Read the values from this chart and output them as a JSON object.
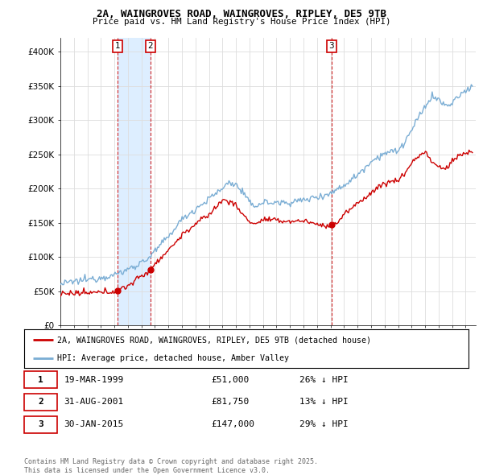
{
  "title": "2A, WAINGROVES ROAD, WAINGROVES, RIPLEY, DE5 9TB",
  "subtitle": "Price paid vs. HM Land Registry's House Price Index (HPI)",
  "ylim": [
    0,
    420000
  ],
  "yticks": [
    0,
    50000,
    100000,
    150000,
    200000,
    250000,
    300000,
    350000,
    400000
  ],
  "ytick_labels": [
    "£0",
    "£50K",
    "£100K",
    "£150K",
    "£200K",
    "£250K",
    "£300K",
    "£350K",
    "£400K"
  ],
  "red_color": "#cc0000",
  "blue_color": "#7aadd4",
  "shade_color": "#ddeeff",
  "background_color": "#ffffff",
  "grid_color": "#dddddd",
  "transactions": [
    {
      "num": 1,
      "date_num": 1999.21,
      "price": 51000,
      "date_str": "19-MAR-1999",
      "pct": "26% ↓ HPI"
    },
    {
      "num": 2,
      "date_num": 2001.66,
      "price": 81750,
      "date_str": "31-AUG-2001",
      "pct": "13% ↓ HPI"
    },
    {
      "num": 3,
      "date_num": 2015.08,
      "price": 147000,
      "date_str": "30-JAN-2015",
      "pct": "29% ↓ HPI"
    }
  ],
  "legend_red": "2A, WAINGROVES ROAD, WAINGROVES, RIPLEY, DE5 9TB (detached house)",
  "legend_blue": "HPI: Average price, detached house, Amber Valley",
  "footnote": "Contains HM Land Registry data © Crown copyright and database right 2025.\nThis data is licensed under the Open Government Licence v3.0.",
  "xlim_start": 1995.0,
  "xlim_end": 2025.75,
  "xtick_start": 1995,
  "xtick_end": 2025
}
